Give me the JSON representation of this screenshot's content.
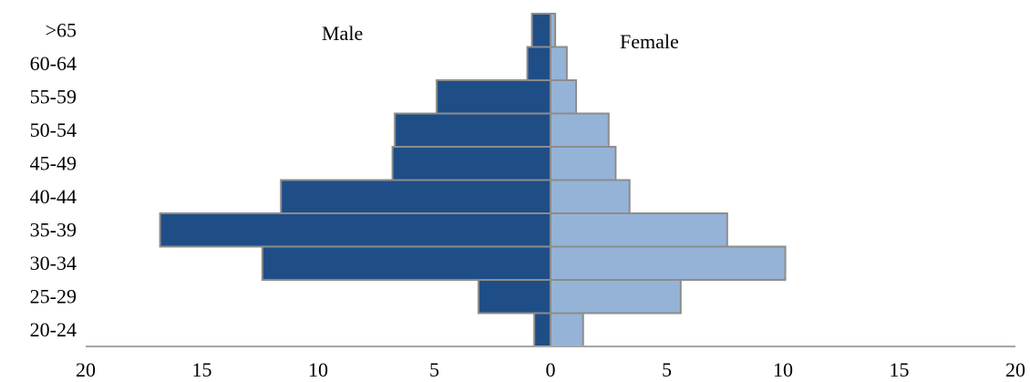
{
  "chart_data": {
    "type": "bar",
    "orientation": "horizontal",
    "layout": "population-pyramid",
    "categories": [
      "20-24",
      "25-29",
      "30-34",
      "35-39",
      "40-44",
      "45-49",
      "50-54",
      "55-59",
      "60-64",
      ">65"
    ],
    "series": [
      {
        "name": "Male",
        "side": "left",
        "color": "#1F4E87",
        "values": [
          0.7,
          3.1,
          12.4,
          16.8,
          11.6,
          6.8,
          6.7,
          4.9,
          1.0,
          0.8
        ]
      },
      {
        "name": "Female",
        "side": "right",
        "color": "#95B3D7",
        "values": [
          1.4,
          5.6,
          10.1,
          7.6,
          3.4,
          2.8,
          2.5,
          1.1,
          0.7,
          0.2
        ]
      }
    ],
    "xlim": [
      -20,
      20
    ],
    "xticks": [
      20,
      15,
      10,
      5,
      0,
      5,
      10,
      15,
      20
    ],
    "bar_edge_color": "#8C8C8C",
    "axis_color": "#A6A6A6",
    "grid": false,
    "legend": "none"
  }
}
